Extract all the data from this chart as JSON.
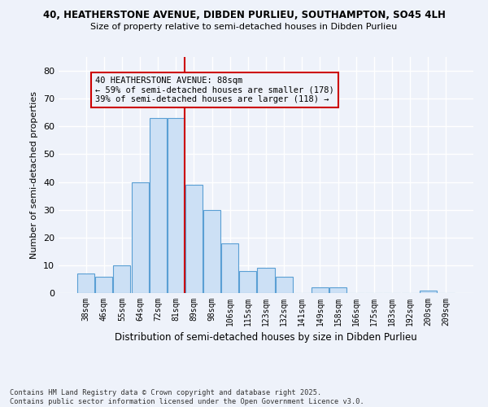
{
  "title_line1": "40, HEATHERSTONE AVENUE, DIBDEN PURLIEU, SOUTHAMPTON, SO45 4LH",
  "title_line2": "Size of property relative to semi-detached houses in Dibden Purlieu",
  "xlabel": "Distribution of semi-detached houses by size in Dibden Purlieu",
  "ylabel": "Number of semi-detached properties",
  "categories": [
    "38sqm",
    "46sqm",
    "55sqm",
    "64sqm",
    "72sqm",
    "81sqm",
    "89sqm",
    "98sqm",
    "106sqm",
    "115sqm",
    "123sqm",
    "132sqm",
    "141sqm",
    "149sqm",
    "158sqm",
    "166sqm",
    "175sqm",
    "183sqm",
    "192sqm",
    "200sqm",
    "209sqm"
  ],
  "values": [
    7,
    6,
    10,
    40,
    63,
    63,
    39,
    30,
    18,
    8,
    9,
    6,
    0,
    2,
    2,
    0,
    0,
    0,
    0,
    1,
    0
  ],
  "bar_color": "#cce0f5",
  "bar_edge_color": "#5a9fd4",
  "vline_x": 6.0,
  "vline_color": "#cc0000",
  "annotation_title": "40 HEATHERSTONE AVENUE: 88sqm",
  "annotation_line1": "← 59% of semi-detached houses are smaller (178)",
  "annotation_line2": "39% of semi-detached houses are larger (118) →",
  "annotation_box_color": "#cc0000",
  "ylim": [
    0,
    85
  ],
  "yticks": [
    0,
    10,
    20,
    30,
    40,
    50,
    60,
    70,
    80
  ],
  "footer_line1": "Contains HM Land Registry data © Crown copyright and database right 2025.",
  "footer_line2": "Contains public sector information licensed under the Open Government Licence v3.0.",
  "bg_color": "#eef2fa",
  "grid_color": "#ffffff"
}
